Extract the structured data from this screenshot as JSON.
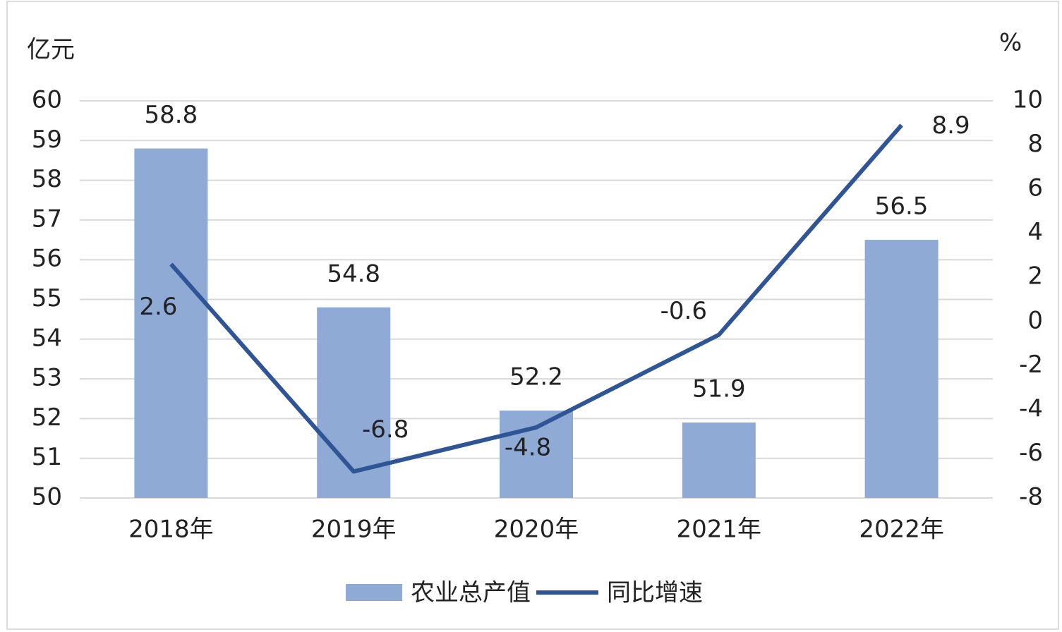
{
  "chart_data": {
    "type": "bar-line",
    "y_label": "亿元",
    "y2_label": "%",
    "categories": [
      "2018年",
      "2019年",
      "2020年",
      "2021年",
      "2022年"
    ],
    "series": [
      {
        "name": "农业总产值",
        "type": "bar",
        "color": "#8eaad5",
        "values": [
          58.8,
          54.8,
          52.2,
          51.9,
          56.5
        ]
      },
      {
        "name": "同比增速",
        "type": "line",
        "axis": "y2",
        "color": "#2f5597",
        "values": [
          2.6,
          -6.8,
          -4.8,
          -0.6,
          8.9
        ]
      }
    ],
    "ylim": [
      50,
      60
    ],
    "yticks": [
      50,
      51,
      52,
      53,
      54,
      55,
      56,
      57,
      58,
      59,
      60
    ],
    "y2lim": [
      -8,
      10
    ],
    "y2ticks": [
      -8,
      -6,
      -4,
      -2,
      0,
      2,
      4,
      6,
      8,
      10
    ],
    "grid": true
  }
}
